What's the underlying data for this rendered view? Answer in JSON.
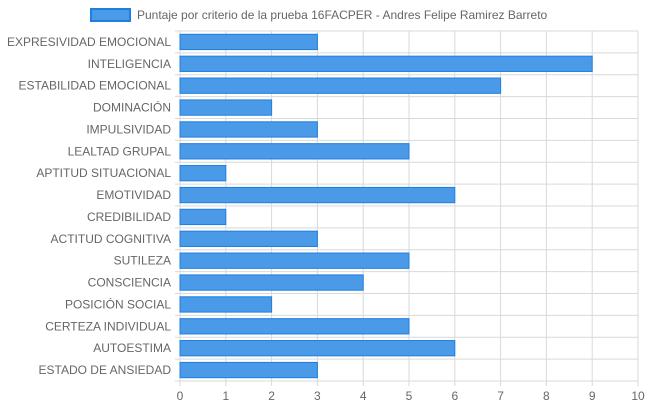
{
  "chart_data": {
    "type": "bar",
    "orientation": "horizontal",
    "legend": {
      "label": "Puntaje por criterio de la prueba 16FACPER - Andres Felipe Ramirez Barreto",
      "placement": "top"
    },
    "categories": [
      "EXPRESIVIDAD EMOCIONAL",
      "INTELIGENCIA",
      "ESTABILIDAD EMOCIONAL",
      "DOMINACIÓN",
      "IMPULSIVIDAD",
      "LEALTAD GRUPAL",
      "APTITUD SITUACIONAL",
      "EMOTIVIDAD",
      "CREDIBILIDAD",
      "ACTITUD COGNITIVA",
      "SUTILEZA",
      "CONSCIENCIA",
      "POSICIÓN SOCIAL",
      "CERTEZA INDIVIDUAL",
      "AUTOESTIMA",
      "ESTADO DE ANSIEDAD"
    ],
    "series": [
      {
        "name": "Puntaje por criterio de la prueba 16FACPER - Andres Felipe Ramirez Barreto",
        "values": [
          3,
          9,
          7,
          2,
          3,
          5,
          1,
          6,
          1,
          3,
          5,
          4,
          2,
          5,
          6,
          3
        ]
      }
    ],
    "xlim": [
      0,
      10
    ],
    "x_ticks": [
      "0",
      "1",
      "2",
      "3",
      "4",
      "5",
      "6",
      "7",
      "8",
      "9",
      "10"
    ],
    "grid": true,
    "colors": {
      "bar_fill": "#4a9ae8",
      "bar_stroke": "#1e7fe0",
      "grid": "#d9d9d9",
      "text": "#666666"
    }
  }
}
